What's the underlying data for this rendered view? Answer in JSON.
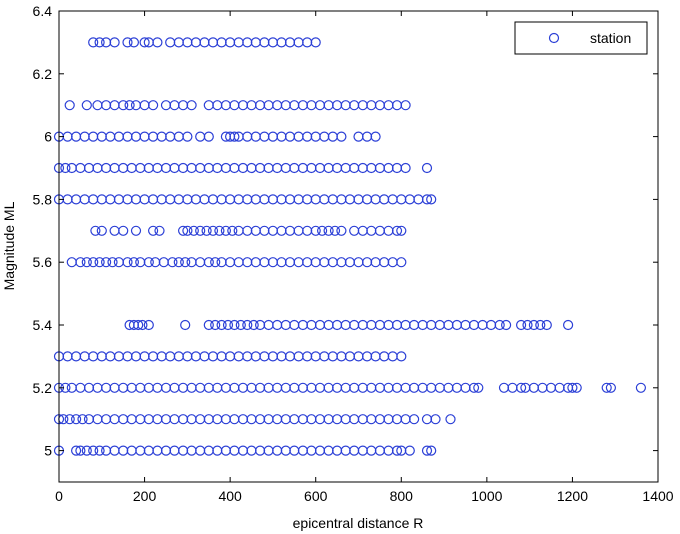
{
  "chart_data": {
    "type": "scatter",
    "xlabel": "epicentral distance R",
    "ylabel": "Magnitude ML",
    "xlim": [
      0,
      1400
    ],
    "ylim": [
      4.9,
      6.4
    ],
    "x_ticks": [
      0,
      200,
      400,
      600,
      800,
      1000,
      1200,
      1400
    ],
    "y_ticks": [
      5,
      5.2,
      5.4,
      5.6,
      5.8,
      6,
      6.2,
      6.4
    ],
    "x_tick_labels": [
      "0",
      "200",
      "400",
      "600",
      "800",
      "1000",
      "1200",
      "1400"
    ],
    "y_tick_labels": [
      "5",
      "5.2",
      "5.4",
      "5.6",
      "5.8",
      "6",
      "6.2",
      "6.4"
    ],
    "grid": false,
    "legend_position": "top-right",
    "marker": "open-circle",
    "marker_color": "#2b3fd6",
    "series": [
      {
        "name": "station",
        "rows": [
          {
            "y": 5.0,
            "x": [
              0,
              40,
              50,
              65,
              80,
              95,
              110,
              130,
              150,
              170,
              190,
              210,
              230,
              250,
              270,
              290,
              310,
              330,
              350,
              370,
              390,
              410,
              430,
              450,
              470,
              490,
              510,
              530,
              550,
              570,
              590,
              610,
              630,
              650,
              670,
              690,
              710,
              730,
              750,
              770,
              790,
              800,
              820,
              860,
              870
            ]
          },
          {
            "y": 5.1,
            "x": [
              0,
              10,
              25,
              40,
              55,
              70,
              90,
              110,
              130,
              150,
              170,
              190,
              210,
              230,
              250,
              270,
              290,
              310,
              330,
              350,
              370,
              390,
              410,
              430,
              450,
              470,
              490,
              510,
              530,
              550,
              570,
              590,
              610,
              630,
              650,
              670,
              690,
              710,
              730,
              750,
              770,
              790,
              810,
              830,
              860,
              880,
              915
            ]
          },
          {
            "y": 5.2,
            "x": [
              0,
              15,
              30,
              50,
              70,
              90,
              110,
              130,
              150,
              170,
              190,
              210,
              230,
              250,
              270,
              290,
              310,
              330,
              350,
              370,
              390,
              410,
              430,
              450,
              470,
              490,
              510,
              530,
              550,
              570,
              590,
              610,
              630,
              650,
              670,
              690,
              710,
              730,
              750,
              770,
              790,
              810,
              830,
              850,
              870,
              890,
              910,
              930,
              950,
              970,
              980,
              1040,
              1060,
              1080,
              1090,
              1110,
              1130,
              1150,
              1170,
              1190,
              1200,
              1210,
              1280,
              1290,
              1360
            ]
          },
          {
            "y": 5.3,
            "x": [
              0,
              20,
              40,
              60,
              80,
              100,
              120,
              140,
              160,
              180,
              200,
              220,
              240,
              260,
              280,
              300,
              320,
              340,
              360,
              380,
              400,
              420,
              440,
              460,
              480,
              500,
              520,
              540,
              560,
              580,
              600,
              620,
              640,
              660,
              680,
              700,
              720,
              740,
              760,
              780,
              800
            ]
          },
          {
            "y": 5.4,
            "x": [
              165,
              175,
              185,
              195,
              210,
              295,
              350,
              365,
              380,
              395,
              410,
              425,
              440,
              455,
              470,
              490,
              510,
              530,
              550,
              570,
              590,
              610,
              630,
              650,
              670,
              690,
              710,
              730,
              750,
              770,
              790,
              810,
              830,
              850,
              870,
              890,
              910,
              930,
              950,
              970,
              990,
              1010,
              1030,
              1045,
              1080,
              1095,
              1110,
              1125,
              1140,
              1190
            ]
          },
          {
            "y": 5.6,
            "x": [
              30,
              50,
              65,
              80,
              95,
              110,
              125,
              140,
              160,
              175,
              190,
              210,
              225,
              245,
              265,
              280,
              295,
              310,
              330,
              350,
              365,
              380,
              400,
              420,
              440,
              460,
              480,
              500,
              520,
              540,
              560,
              580,
              600,
              620,
              640,
              660,
              680,
              700,
              720,
              740,
              760,
              780,
              800
            ]
          },
          {
            "y": 5.7,
            "x": [
              85,
              100,
              130,
              150,
              180,
              220,
              235,
              290,
              300,
              315,
              330,
              345,
              360,
              375,
              390,
              405,
              420,
              440,
              460,
              480,
              500,
              520,
              540,
              560,
              580,
              600,
              615,
              630,
              645,
              660,
              690,
              710,
              730,
              750,
              770,
              790,
              800
            ]
          },
          {
            "y": 5.8,
            "x": [
              0,
              20,
              40,
              60,
              80,
              100,
              120,
              140,
              160,
              180,
              200,
              220,
              240,
              260,
              280,
              300,
              320,
              340,
              360,
              380,
              400,
              420,
              440,
              460,
              480,
              500,
              520,
              540,
              560,
              580,
              600,
              620,
              640,
              660,
              680,
              700,
              720,
              740,
              760,
              780,
              800,
              820,
              840,
              860,
              870
            ]
          },
          {
            "y": 5.9,
            "x": [
              0,
              15,
              30,
              50,
              70,
              90,
              110,
              130,
              150,
              170,
              190,
              210,
              230,
              250,
              270,
              290,
              310,
              330,
              350,
              370,
              390,
              410,
              430,
              450,
              470,
              490,
              510,
              530,
              550,
              570,
              590,
              610,
              630,
              650,
              670,
              690,
              710,
              730,
              750,
              770,
              790,
              810,
              860
            ]
          },
          {
            "y": 6.0,
            "x": [
              0,
              20,
              40,
              60,
              80,
              100,
              120,
              140,
              160,
              180,
              200,
              220,
              240,
              260,
              280,
              300,
              330,
              350,
              390,
              400,
              410,
              420,
              440,
              460,
              480,
              500,
              520,
              540,
              560,
              580,
              600,
              620,
              640,
              660,
              700,
              720,
              740
            ]
          },
          {
            "y": 6.1,
            "x": [
              25,
              65,
              90,
              110,
              130,
              150,
              165,
              180,
              200,
              220,
              250,
              270,
              290,
              310,
              350,
              370,
              390,
              410,
              430,
              450,
              470,
              490,
              510,
              530,
              550,
              570,
              590,
              610,
              630,
              650,
              670,
              690,
              710,
              730,
              750,
              770,
              790,
              810
            ]
          },
          {
            "y": 6.3,
            "x": [
              80,
              95,
              110,
              130,
              160,
              175,
              200,
              210,
              230,
              260,
              280,
              300,
              320,
              340,
              360,
              380,
              400,
              420,
              440,
              460,
              480,
              500,
              520,
              540,
              560,
              580,
              600
            ]
          }
        ]
      }
    ]
  },
  "legend": {
    "label": "station"
  }
}
